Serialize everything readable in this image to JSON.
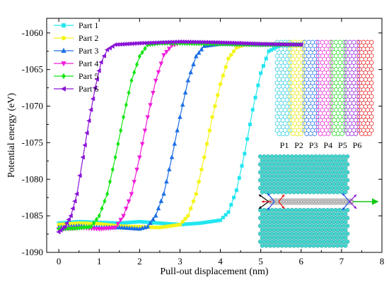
{
  "chart_data": {
    "type": "line",
    "title": "",
    "xlabel": "Pull-out displacement (nm)",
    "ylabel": "Potential energy (eV)",
    "xlim": [
      -0.3,
      8
    ],
    "ylim": [
      -1090,
      -1058
    ],
    "x_ticks": [
      0,
      1,
      2,
      3,
      4,
      5,
      6,
      7,
      8
    ],
    "y_ticks": [
      -1090,
      -1085,
      -1080,
      -1075,
      -1070,
      -1065,
      -1060
    ],
    "grid": false,
    "legend_position": "top-left",
    "series": [
      {
        "name": "Part 1",
        "color": "#22e6f0",
        "marker": "square",
        "x": [
          0,
          0.5,
          1,
          1.5,
          2,
          2.5,
          3,
          3.5,
          4,
          4.2,
          4.4,
          4.6,
          4.8,
          5.0,
          5.2,
          5.5,
          6
        ],
        "y": [
          -1086.0,
          -1085.8,
          -1085.9,
          -1086.0,
          -1085.8,
          -1086.0,
          -1086.2,
          -1086.0,
          -1085.6,
          -1084.5,
          -1081.5,
          -1076.5,
          -1070.5,
          -1065.5,
          -1062.5,
          -1061.6,
          -1061.6
        ]
      },
      {
        "name": "Part 2",
        "color": "#f5f51a",
        "marker": "circle",
        "x": [
          0,
          0.5,
          1,
          1.5,
          2,
          2.5,
          3,
          3.2,
          3.4,
          3.6,
          3.8,
          4.0,
          4.2,
          4.4,
          4.6,
          5,
          6
        ],
        "y": [
          -1086.2,
          -1086.0,
          -1086.1,
          -1086.4,
          -1086.5,
          -1086.6,
          -1086.2,
          -1085.0,
          -1082.0,
          -1077.0,
          -1071.5,
          -1067.0,
          -1063.5,
          -1062.0,
          -1061.6,
          -1061.6,
          -1061.6
        ]
      },
      {
        "name": "Part 3",
        "color": "#1c6ee6",
        "marker": "triangle-up",
        "x": [
          0,
          0.5,
          1,
          1.5,
          2,
          2.2,
          2.4,
          2.6,
          2.8,
          3.0,
          3.2,
          3.4,
          3.6,
          4,
          5,
          6
        ],
        "y": [
          -1086.6,
          -1086.4,
          -1086.6,
          -1086.6,
          -1086.8,
          -1086.5,
          -1085.0,
          -1082.0,
          -1077.0,
          -1071.5,
          -1066.5,
          -1063.2,
          -1061.8,
          -1061.5,
          -1061.6,
          -1061.6
        ]
      },
      {
        "name": "Part 4",
        "color": "#f01cd8",
        "marker": "triangle-down",
        "x": [
          0,
          0.5,
          1,
          1.4,
          1.6,
          1.8,
          2.0,
          2.2,
          2.4,
          2.6,
          2.8,
          3,
          4,
          5,
          6
        ],
        "y": [
          -1086.8,
          -1086.6,
          -1086.8,
          -1086.6,
          -1085.0,
          -1082.0,
          -1077.0,
          -1071.5,
          -1066.5,
          -1063.0,
          -1061.7,
          -1061.4,
          -1061.5,
          -1061.6,
          -1061.6
        ]
      },
      {
        "name": "Part 5",
        "color": "#14e614",
        "marker": "diamond",
        "x": [
          0,
          0.4,
          0.8,
          1.0,
          1.2,
          1.4,
          1.6,
          1.8,
          2.0,
          2.2,
          2.5,
          3,
          4,
          5,
          6
        ],
        "y": [
          -1086.8,
          -1086.7,
          -1086.5,
          -1085.0,
          -1082.0,
          -1077.0,
          -1071.5,
          -1066.5,
          -1063.2,
          -1061.6,
          -1061.4,
          -1061.4,
          -1061.5,
          -1061.6,
          -1061.6
        ]
      },
      {
        "name": "Part 6",
        "color": "#8a14d6",
        "marker": "triangle-left",
        "x": [
          0,
          0.15,
          0.3,
          0.45,
          0.6,
          0.75,
          0.9,
          1.05,
          1.2,
          1.4,
          1.7,
          2,
          2.5,
          3,
          4,
          5,
          6
        ],
        "y": [
          -1087.2,
          -1086.5,
          -1085.0,
          -1082.0,
          -1077.0,
          -1072.0,
          -1067.5,
          -1064.0,
          -1062.3,
          -1061.6,
          -1061.5,
          -1061.4,
          -1061.3,
          -1061.2,
          -1061.3,
          -1061.5,
          -1061.6
        ]
      }
    ]
  },
  "inset": {
    "part_labels": [
      "P1",
      "P2",
      "P3",
      "P4",
      "P5",
      "P6"
    ],
    "part_colors": [
      "#22c8e0",
      "#e6e600",
      "#1c6ee6",
      "#e61cd0",
      "#14d614",
      "#8a14d6",
      "#e61414"
    ]
  }
}
